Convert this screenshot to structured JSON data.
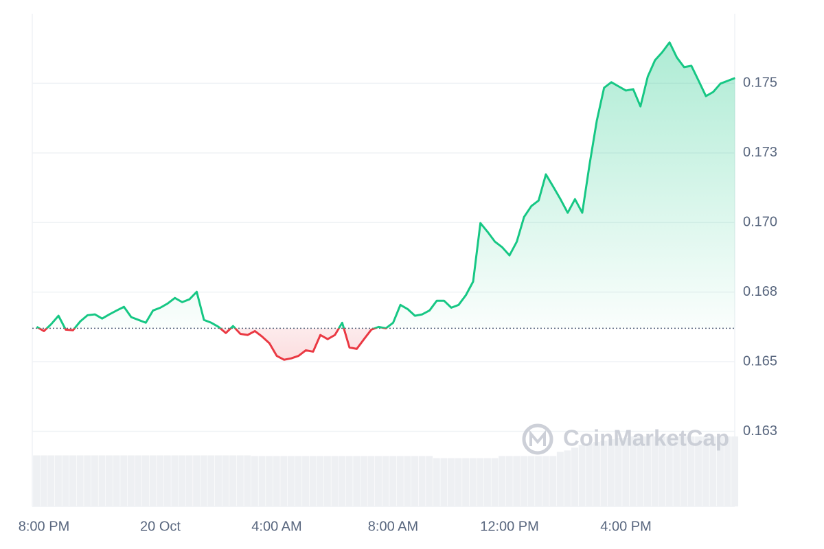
{
  "chart_data": {
    "type": "line",
    "categories": [
      null,
      "8:00 PM",
      null,
      null,
      null,
      null,
      null,
      null,
      null,
      null,
      null,
      null,
      null,
      null,
      null,
      null,
      null,
      "20 Oct",
      null,
      null,
      null,
      null,
      null,
      null,
      null,
      null,
      null,
      null,
      null,
      null,
      null,
      null,
      null,
      "4:00 AM",
      null,
      null,
      null,
      null,
      null,
      null,
      null,
      null,
      null,
      null,
      null,
      null,
      null,
      null,
      null,
      "8:00 AM",
      null,
      null,
      null,
      null,
      null,
      null,
      null,
      null,
      null,
      null,
      null,
      null,
      null,
      null,
      null,
      "12:00 PM",
      null,
      null,
      null,
      null,
      null,
      null,
      null,
      null,
      null,
      null,
      null,
      null,
      null,
      null,
      null,
      "4:00 PM",
      null,
      null,
      null,
      null,
      null,
      null,
      null,
      null,
      null,
      null,
      null,
      null,
      null,
      null,
      null
    ],
    "values": [
      0.16625,
      0.1661,
      0.16635,
      0.16665,
      0.16615,
      0.16613,
      0.16645,
      0.16667,
      0.1667,
      0.16655,
      0.1667,
      0.16684,
      0.16697,
      0.1666,
      0.1665,
      0.1664,
      0.16684,
      0.16694,
      0.16709,
      0.16729,
      0.16714,
      0.16724,
      0.16751,
      0.1665,
      0.1664,
      0.16625,
      0.16603,
      0.16628,
      0.166,
      0.16596,
      0.1661,
      0.1659,
      0.16566,
      0.16521,
      0.16507,
      0.16512,
      0.16521,
      0.16541,
      0.16536,
      0.16596,
      0.16581,
      0.16596,
      0.1664,
      0.16551,
      0.16546,
      0.16581,
      0.16615,
      0.16625,
      0.1662,
      0.1664,
      0.16704,
      0.16689,
      0.16665,
      0.1667,
      0.16684,
      0.16719,
      0.16719,
      0.16694,
      0.16704,
      0.16739,
      0.16788,
      0.16998,
      0.16966,
      0.16931,
      0.16911,
      0.16882,
      0.16931,
      0.1702,
      0.17059,
      0.17079,
      0.17173,
      0.17129,
      0.17084,
      0.17035,
      0.17084,
      0.17035,
      0.17208,
      0.17366,
      0.17484,
      0.17504,
      0.17489,
      0.17474,
      0.17479,
      0.17417,
      0.17524,
      0.17583,
      0.17612,
      0.17647,
      0.17593,
      0.17558,
      0.17563,
      0.17509,
      0.17454,
      0.17469,
      0.17499,
      0.17509,
      0.17519
    ],
    "reference": 0.1662,
    "color_up": "#16c784",
    "color_down": "#ea3943",
    "volume": {
      "color": "#eef0f3",
      "values": [
        73,
        73,
        73,
        73,
        73,
        73,
        73,
        73,
        73,
        73,
        73,
        73,
        73,
        73,
        73,
        73,
        73,
        73,
        73,
        73,
        73,
        73,
        73,
        73,
        73,
        73,
        73,
        73,
        73,
        73,
        72,
        72,
        72,
        72,
        72,
        72,
        72,
        72,
        72,
        72,
        72,
        72,
        72,
        72,
        72,
        72,
        72,
        72,
        72,
        72,
        72,
        72,
        72,
        72,
        72,
        69,
        69,
        69,
        69,
        69,
        69,
        69,
        69,
        69,
        72,
        72,
        72,
        72,
        72,
        72,
        72,
        72,
        78,
        80,
        84,
        88,
        90,
        92,
        94,
        96,
        98,
        98,
        100,
        100,
        100,
        100,
        100,
        100,
        100,
        100,
        100,
        100,
        100,
        100,
        100,
        100,
        100
      ]
    },
    "ylim": [
      0.1598,
      0.1775
    ],
    "yticks": [
      {
        "value": 0.1625,
        "label": "0.163"
      },
      0.165,
      {
        "value": 0.1675,
        "label": "0.168"
      },
      {
        "value": 0.17,
        "label": "0.170"
      },
      {
        "value": 0.1725,
        "label": "0.173"
      },
      0.175
    ],
    "grid": true,
    "watermark": "CoinMarketCap"
  }
}
